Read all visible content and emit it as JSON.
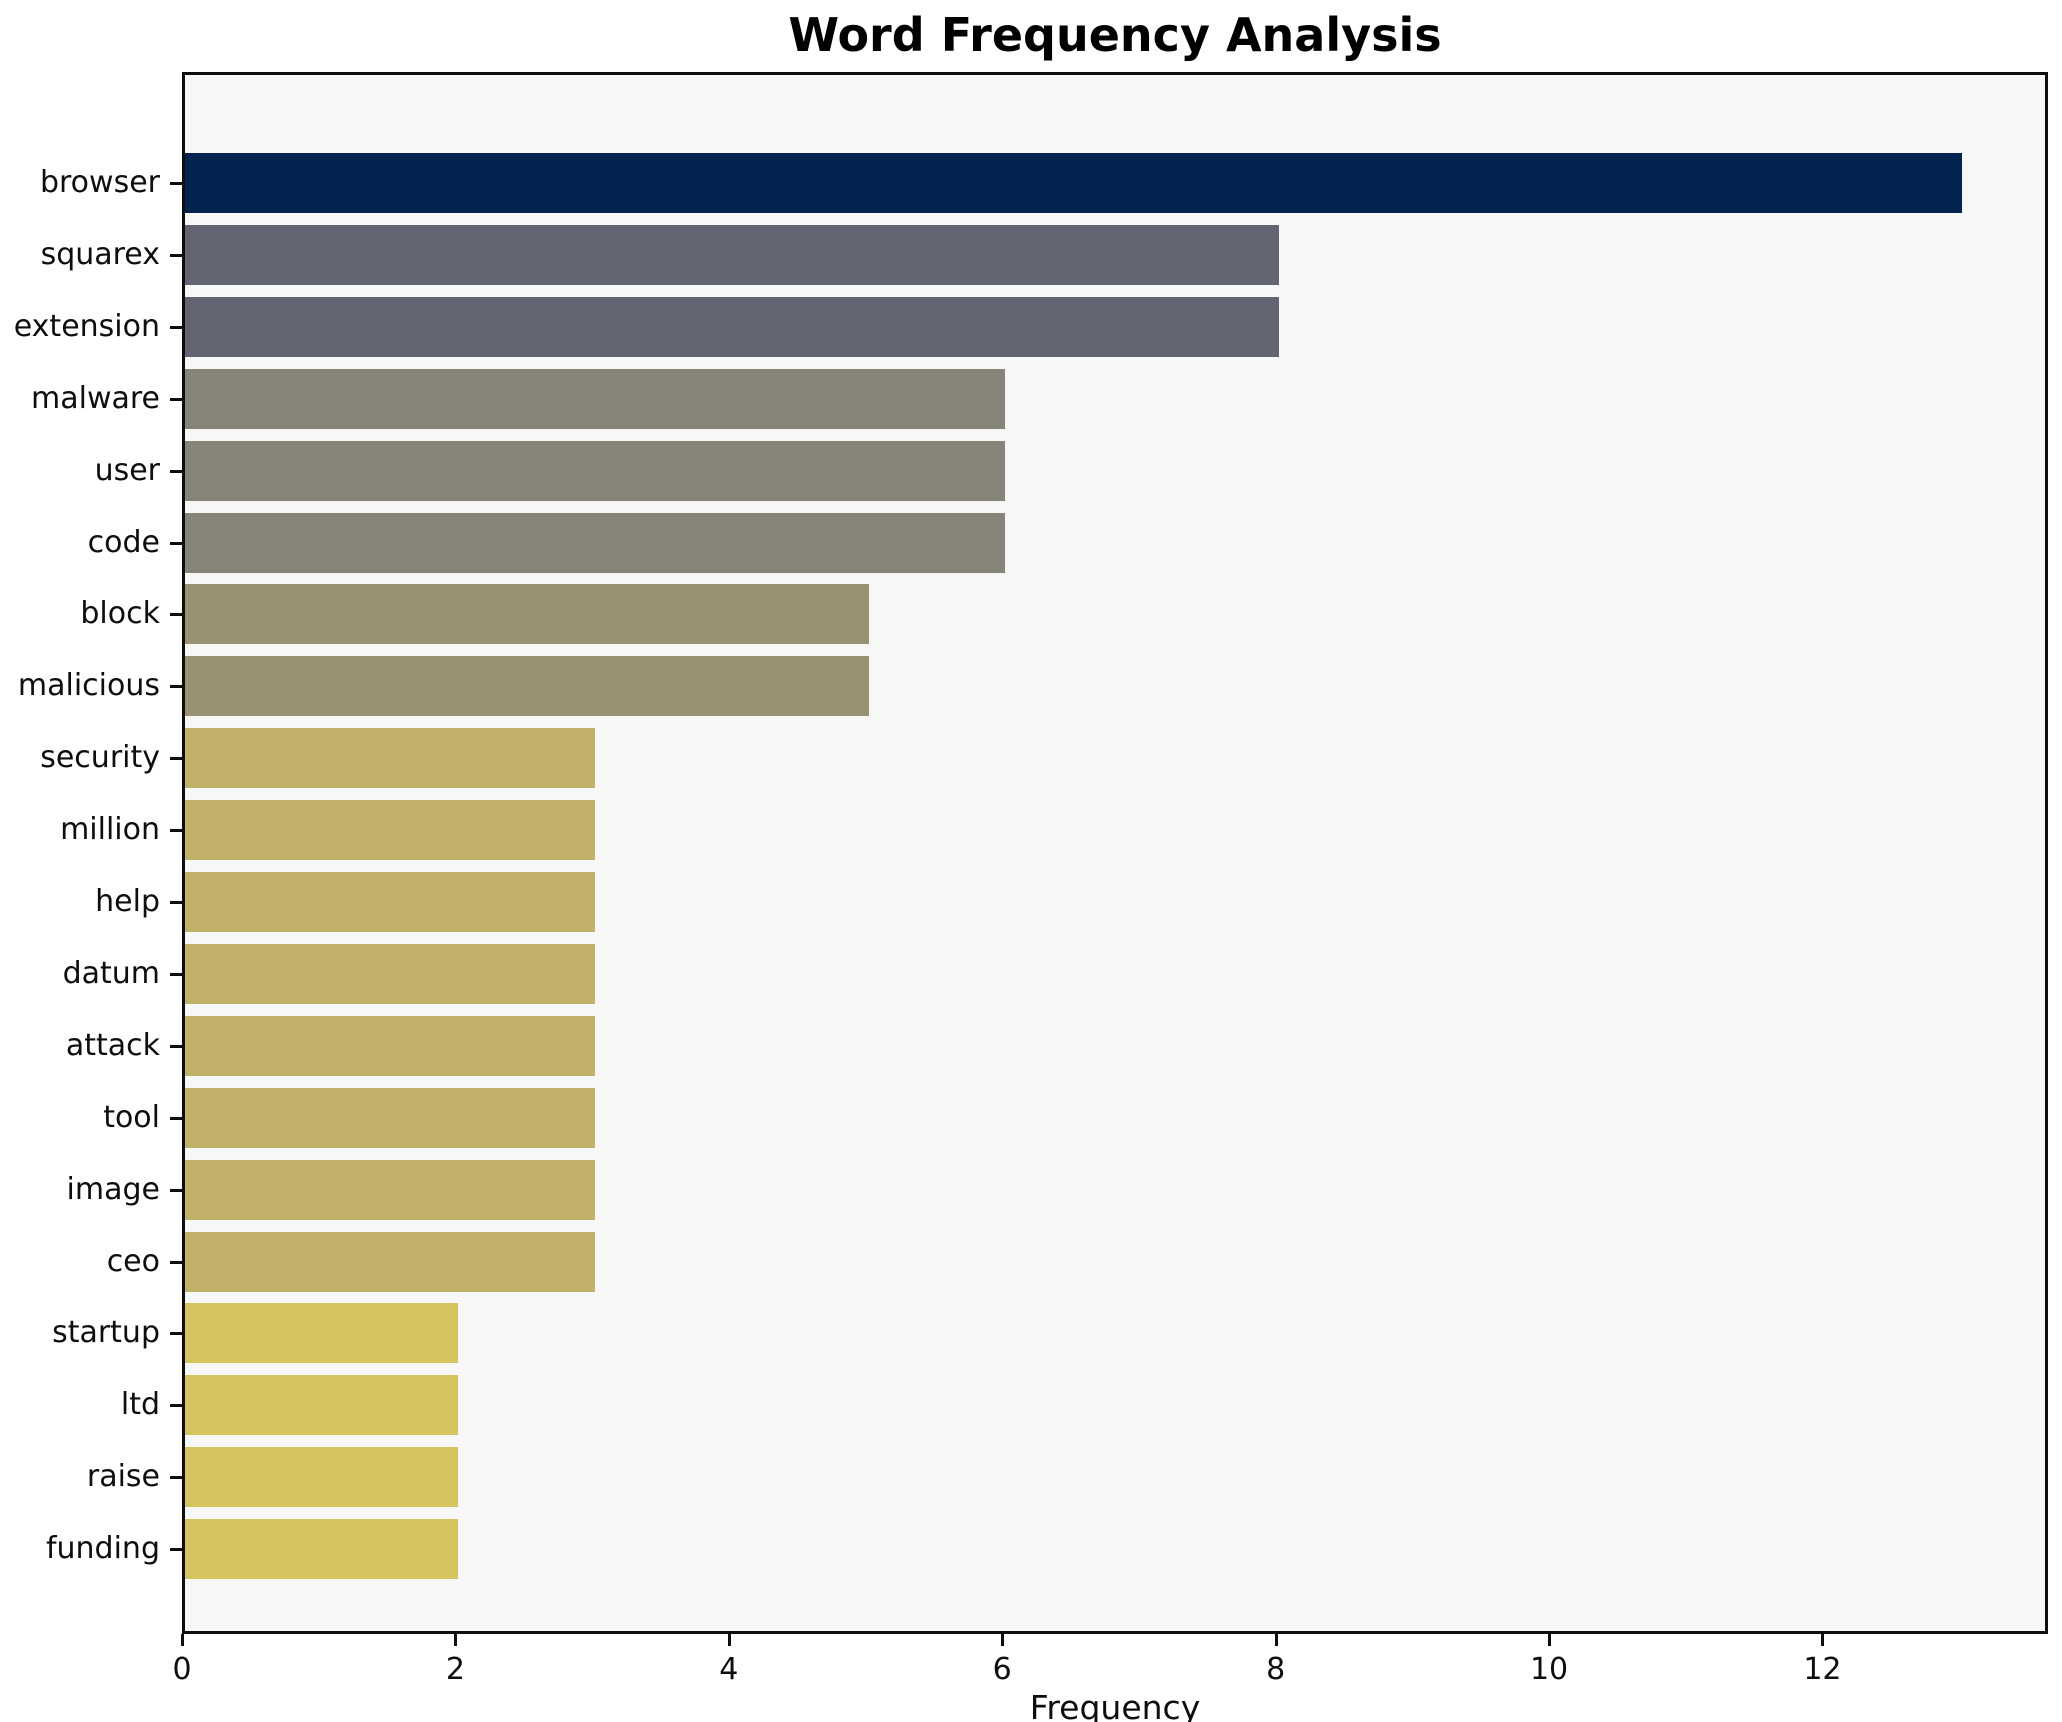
{
  "chart_data": {
    "type": "bar",
    "orientation": "horizontal",
    "title": "Word Frequency Analysis",
    "xlabel": "Frequency",
    "ylabel": "",
    "categories": [
      "browser",
      "squarex",
      "extension",
      "malware",
      "user",
      "code",
      "block",
      "malicious",
      "security",
      "million",
      "help",
      "datum",
      "attack",
      "tool",
      "image",
      "ceo",
      "startup",
      "ltd",
      "raise",
      "funding"
    ],
    "values": [
      13,
      8,
      8,
      6,
      6,
      6,
      5,
      5,
      3,
      3,
      3,
      3,
      3,
      3,
      3,
      3,
      2,
      2,
      2,
      2
    ],
    "bar_colors": [
      "#02234e",
      "#636672",
      "#636672",
      "#868379",
      "#868379",
      "#868379",
      "#999272",
      "#999272",
      "#c0b068",
      "#c0b068",
      "#c0b068",
      "#c0b068",
      "#c0b068",
      "#c0b068",
      "#c0b068",
      "#c0b068",
      "#d6c25e",
      "#d6c25e",
      "#d6c25e",
      "#d6c25e"
    ],
    "x_ticks": [
      0,
      2,
      4,
      6,
      8,
      10,
      12
    ],
    "xlim": [
      0,
      13.65
    ],
    "grid": false,
    "legend": false,
    "plot_background": "#f7f7f6",
    "figure_background": "#ffffff",
    "colormap": "cividis"
  }
}
